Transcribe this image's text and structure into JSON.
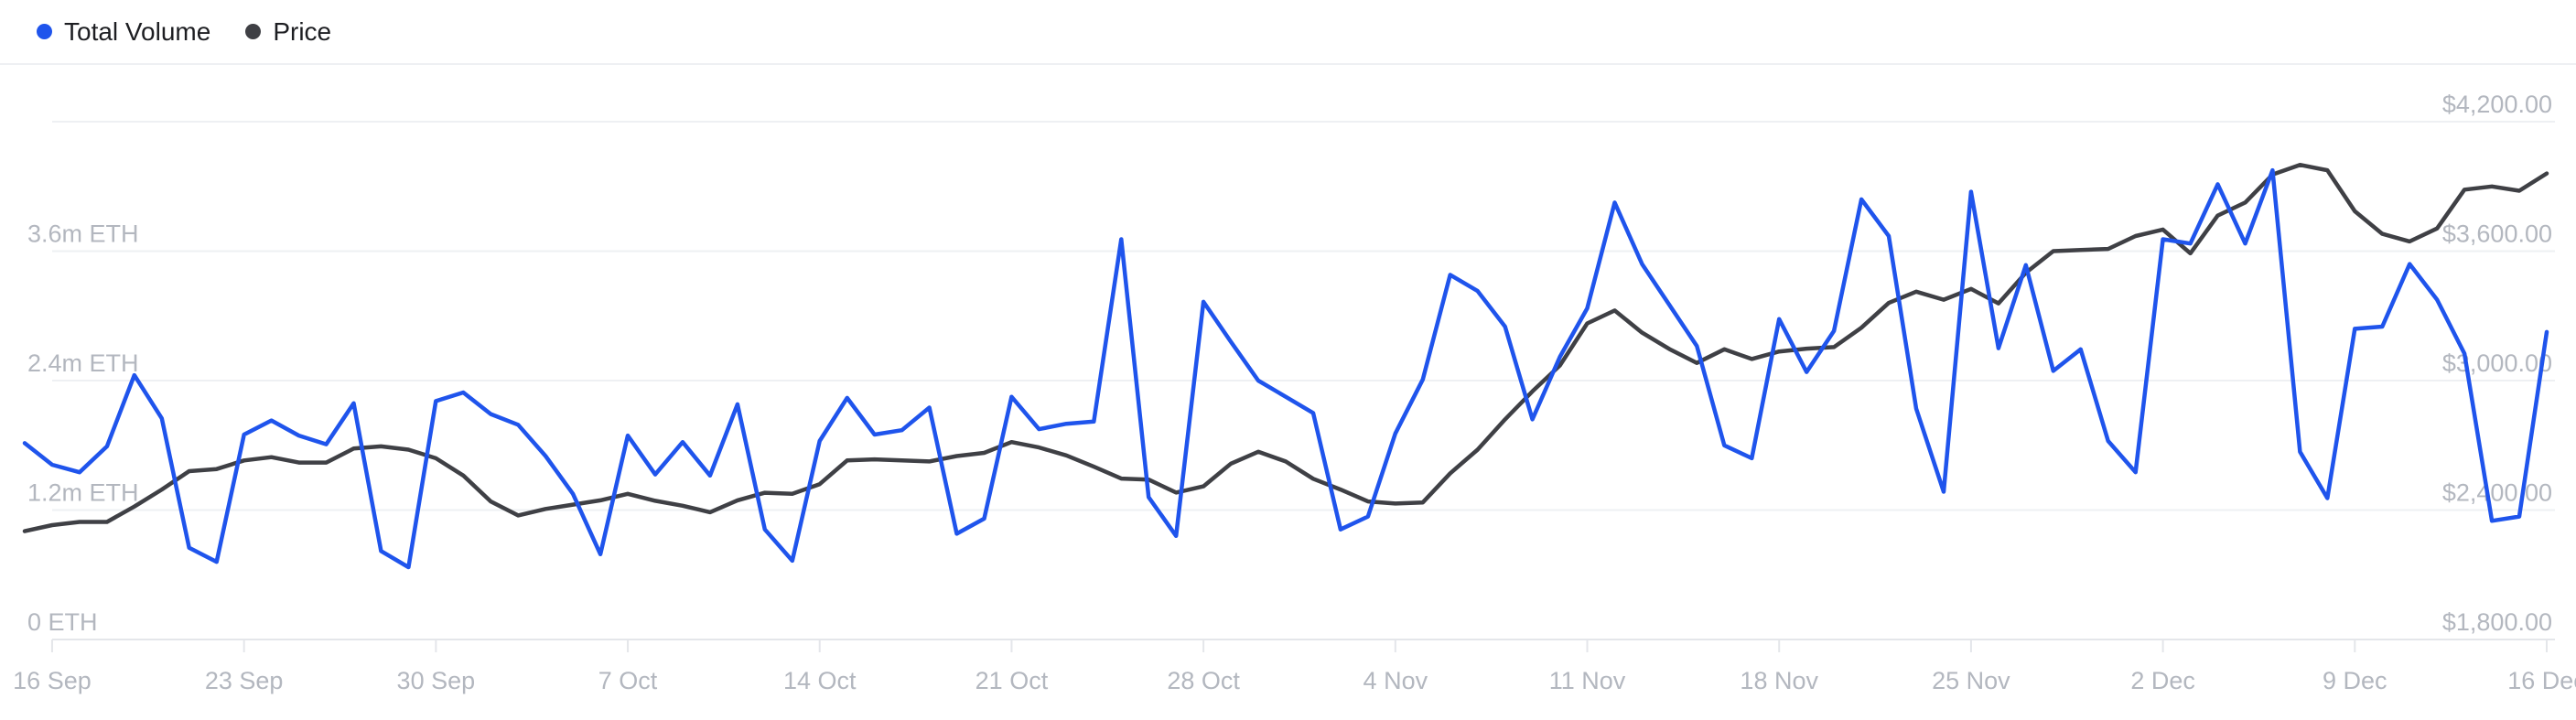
{
  "legend": {
    "items": [
      {
        "label": "Total Volume",
        "color": "#1f54ec"
      },
      {
        "label": "Price",
        "color": "#3f4045"
      }
    ]
  },
  "chart_data": {
    "type": "line",
    "title": "",
    "grid": true,
    "legend_position": "top-left",
    "x_dates": [
      "15 Sep",
      "16 Sep",
      "17 Sep",
      "18 Sep",
      "19 Sep",
      "20 Sep",
      "21 Sep",
      "22 Sep",
      "23 Sep",
      "24 Sep",
      "25 Sep",
      "26 Sep",
      "27 Sep",
      "28 Sep",
      "29 Sep",
      "30 Sep",
      "1 Oct",
      "2 Oct",
      "3 Oct",
      "4 Oct",
      "5 Oct",
      "6 Oct",
      "7 Oct",
      "8 Oct",
      "9 Oct",
      "10 Oct",
      "11 Oct",
      "12 Oct",
      "13 Oct",
      "14 Oct",
      "15 Oct",
      "16 Oct",
      "17 Oct",
      "18 Oct",
      "19 Oct",
      "20 Oct",
      "21 Oct",
      "22 Oct",
      "23 Oct",
      "24 Oct",
      "25 Oct",
      "26 Oct",
      "27 Oct",
      "28 Oct",
      "29 Oct",
      "30 Oct",
      "31 Oct",
      "1 Nov",
      "2 Nov",
      "3 Nov",
      "4 Nov",
      "5 Nov",
      "6 Nov",
      "7 Nov",
      "8 Nov",
      "9 Nov",
      "10 Nov",
      "11 Nov",
      "12 Nov",
      "13 Nov",
      "14 Nov",
      "15 Nov",
      "16 Nov",
      "17 Nov",
      "18 Nov",
      "19 Nov",
      "20 Nov",
      "21 Nov",
      "22 Nov",
      "23 Nov",
      "24 Nov",
      "25 Nov",
      "26 Nov",
      "27 Nov",
      "28 Nov",
      "29 Nov",
      "30 Nov",
      "1 Dec",
      "2 Dec",
      "3 Dec",
      "4 Dec",
      "5 Dec",
      "6 Dec",
      "7 Dec",
      "8 Dec",
      "9 Dec",
      "10 Dec",
      "11 Dec",
      "12 Dec",
      "13 Dec",
      "14 Dec",
      "15 Dec",
      "16 Dec"
    ],
    "series": [
      {
        "name": "Total Volume",
        "axis": "left",
        "unit": "m ETH",
        "color": "#1f54ec",
        "values": [
          1.82,
          1.62,
          1.55,
          1.79,
          2.45,
          2.05,
          0.85,
          0.72,
          1.9,
          2.03,
          1.89,
          1.81,
          2.19,
          0.82,
          0.67,
          2.21,
          2.29,
          2.09,
          1.99,
          1.7,
          1.35,
          0.79,
          1.89,
          1.53,
          1.83,
          1.52,
          2.18,
          1.02,
          0.73,
          1.84,
          2.24,
          1.9,
          1.94,
          2.15,
          0.98,
          1.12,
          2.25,
          1.95,
          2.0,
          2.02,
          3.71,
          1.32,
          0.96,
          3.13,
          2.76,
          2.4,
          2.25,
          2.1,
          1.02,
          1.14,
          1.91,
          2.41,
          3.38,
          3.23,
          2.9,
          2.04,
          2.62,
          3.07,
          4.05,
          3.48,
          3.1,
          2.72,
          1.8,
          1.68,
          2.97,
          2.48,
          2.86,
          4.08,
          3.74,
          2.14,
          1.37,
          4.15,
          2.7,
          3.47,
          2.49,
          2.69,
          1.84,
          1.55,
          3.71,
          3.67,
          4.22,
          3.67,
          4.35,
          1.74,
          1.31,
          2.88,
          2.9,
          3.48,
          3.15,
          2.65,
          1.1,
          1.14,
          2.85
        ]
      },
      {
        "name": "Price",
        "axis": "right",
        "unit": "USD",
        "color": "#3f4045",
        "values": [
          2302,
          2330,
          2345,
          2345,
          2416,
          2495,
          2580,
          2590,
          2630,
          2645,
          2620,
          2620,
          2685,
          2695,
          2680,
          2640,
          2560,
          2440,
          2375,
          2405,
          2425,
          2445,
          2475,
          2443,
          2420,
          2390,
          2445,
          2480,
          2475,
          2520,
          2630,
          2635,
          2630,
          2625,
          2650,
          2665,
          2715,
          2690,
          2653,
          2601,
          2546,
          2541,
          2481,
          2510,
          2615,
          2670,
          2625,
          2545,
          2495,
          2440,
          2430,
          2435,
          2570,
          2680,
          2820,
          2950,
          3070,
          3265,
          3325,
          3222,
          3146,
          3082,
          3145,
          3100,
          3135,
          3148,
          3155,
          3245,
          3360,
          3412,
          3375,
          3425,
          3358,
          3500,
          3600,
          3605,
          3610,
          3670,
          3700,
          3590,
          3765,
          3825,
          3955,
          4000,
          3975,
          3785,
          3680,
          3645,
          3705,
          3885,
          3900,
          3880,
          3960
        ]
      }
    ],
    "left_axis": {
      "unit": "m ETH",
      "tick_labels": [
        "3.6m ETH",
        "2.4m ETH",
        "1.2m ETH",
        "0 ETH"
      ],
      "tick_values": [
        3.6,
        2.4,
        1.2,
        0
      ],
      "min": 0,
      "max": 4.8
    },
    "right_axis": {
      "unit": "USD",
      "tick_labels": [
        "$4,200.00",
        "$3,600.00",
        "$3,000.00",
        "$2,400.00",
        "$1,800.00"
      ],
      "tick_values": [
        4200,
        3600,
        3000,
        2400,
        1800
      ],
      "min": 1800,
      "max": 4200
    },
    "x_axis": {
      "tick_labels": [
        "16 Sep",
        "23 Sep",
        "30 Sep",
        "7 Oct",
        "14 Oct",
        "21 Oct",
        "28 Oct",
        "4 Nov",
        "11 Nov",
        "18 Nov",
        "25 Nov",
        "2 Dec",
        "9 Dec",
        "16 Dec"
      ],
      "tick_indices": [
        1,
        8,
        15,
        22,
        29,
        36,
        43,
        50,
        57,
        64,
        71,
        78,
        85,
        92
      ]
    },
    "colors": {
      "gridline": "#eef0f3",
      "axis_line": "#e4e6ea",
      "axis_label": "#b3b7bf",
      "background": "#ffffff"
    }
  }
}
